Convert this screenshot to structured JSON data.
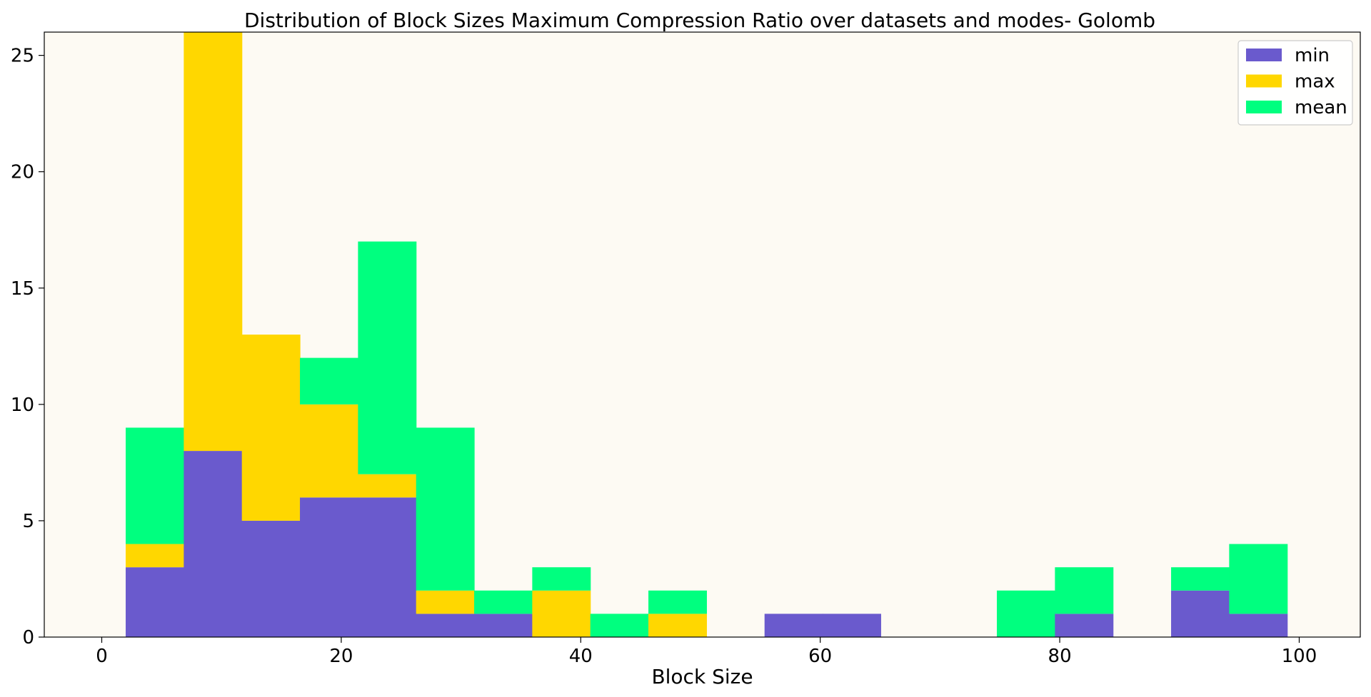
{
  "chart_data": {
    "type": "bar",
    "title": "Distribution of Block Sizes Maximum Compression Ratio over datasets and modes- Golomb",
    "xlabel": "Block Size",
    "ylabel": "",
    "xlim": [
      -4.8,
      105.1
    ],
    "ylim": [
      0,
      26
    ],
    "x_ticks": [
      0,
      20,
      40,
      60,
      80,
      100
    ],
    "y_ticks": [
      0,
      5,
      10,
      15,
      20,
      25
    ],
    "bin_edges": [
      2,
      6.85,
      11.7,
      16.55,
      21.4,
      26.25,
      31.1,
      35.95,
      40.8,
      45.65,
      50.5,
      55.35,
      60.2,
      65.05,
      69.9,
      74.75,
      79.6,
      84.45,
      89.3,
      94.15,
      99
    ],
    "stacked": true,
    "background": "#fdfaf3",
    "legend_position": "top-right",
    "series": [
      {
        "name": "min",
        "color": "#6a5acd",
        "values": [
          3,
          8,
          5,
          6,
          6,
          1,
          1,
          0,
          0,
          0,
          0,
          1,
          1,
          0,
          0,
          0,
          1,
          0,
          2,
          1
        ]
      },
      {
        "name": "max",
        "color": "#ffd700",
        "values": [
          1,
          18,
          8,
          4,
          1,
          1,
          0,
          2,
          0,
          1,
          0,
          0,
          0,
          0,
          0,
          0,
          0,
          0,
          0,
          0
        ]
      },
      {
        "name": "mean",
        "color": "#00ff7f",
        "values": [
          5,
          0,
          0,
          2,
          10,
          7,
          1,
          1,
          1,
          1,
          0,
          0,
          0,
          0,
          0,
          2,
          2,
          0,
          1,
          3
        ]
      }
    ]
  }
}
